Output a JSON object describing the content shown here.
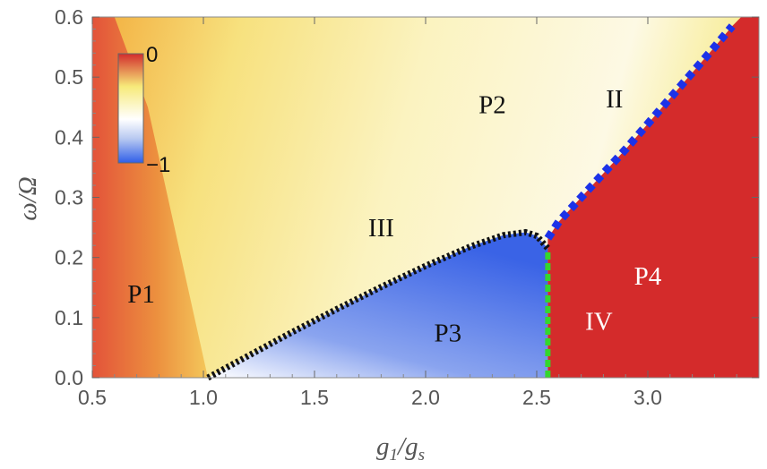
{
  "chart_data": {
    "type": "heatmap",
    "title": "",
    "xlabel": "g₁/gₛ",
    "ylabel": "ω/Ω",
    "x_label_parts": {
      "main": "g",
      "sub1": "1",
      "sep": "/",
      "main2": "g",
      "sub2": "s"
    },
    "y_label_parts": {
      "main": "ω/Ω"
    },
    "xlim": [
      0.5,
      3.5
    ],
    "ylim": [
      0.0,
      0.6
    ],
    "x_ticks": [
      0.5,
      1.0,
      1.5,
      2.0,
      2.5,
      3.0
    ],
    "x_tick_labels": [
      "0.5",
      "1.0",
      "1.5",
      "2.0",
      "2.5",
      "3.0"
    ],
    "y_ticks": [
      0.0,
      0.1,
      0.2,
      0.3,
      0.4,
      0.5,
      0.6
    ],
    "y_tick_labels": [
      "0.0",
      "0.1",
      "0.2",
      "0.3",
      "0.4",
      "0.5",
      "0.6"
    ],
    "colorbar": {
      "max_label": "0",
      "min_label": "−1",
      "max": 0,
      "min": -1,
      "colors": [
        "#d22c2c",
        "#f7ea7a",
        "#ffffff",
        "#b7c8f1",
        "#2f5ee8"
      ]
    },
    "regions": [
      {
        "label": "P1",
        "x": 0.72,
        "y": 0.125,
        "color": "#111111"
      },
      {
        "label": "P2",
        "x": 2.3,
        "y": 0.44,
        "color": "#111111"
      },
      {
        "label": "P3",
        "x": 2.1,
        "y": 0.06,
        "color": "#111111"
      },
      {
        "label": "P4",
        "x": 3.0,
        "y": 0.155,
        "color": "#ffffff"
      },
      {
        "label": "II",
        "x": 2.85,
        "y": 0.45,
        "color": "#111111"
      },
      {
        "label": "III",
        "x": 1.8,
        "y": 0.235,
        "color": "#111111"
      },
      {
        "label": "IV",
        "x": 2.78,
        "y": 0.08,
        "color": "#ffffff"
      }
    ],
    "boundaries": [
      {
        "name": "III",
        "style": "black-dotted",
        "color": "#111111",
        "x": [
          1.02,
          1.2,
          1.4,
          1.6,
          1.8,
          2.0,
          2.2,
          2.35,
          2.45,
          2.5,
          2.55
        ],
        "y": [
          0.0,
          0.036,
          0.076,
          0.114,
          0.151,
          0.186,
          0.218,
          0.237,
          0.242,
          0.236,
          0.215
        ]
      },
      {
        "name": "II",
        "style": "blue-dashed",
        "color": "#1c32e8",
        "x": [
          2.55,
          2.6,
          2.7,
          2.9,
          3.1,
          3.3,
          3.38
        ],
        "y": [
          0.232,
          0.26,
          0.3,
          0.38,
          0.465,
          0.55,
          0.585
        ]
      },
      {
        "name": "IV",
        "style": "green-dashed",
        "color": "#35d62c",
        "x": [
          2.55,
          2.55
        ],
        "y": [
          0.0,
          0.21
        ]
      }
    ]
  }
}
